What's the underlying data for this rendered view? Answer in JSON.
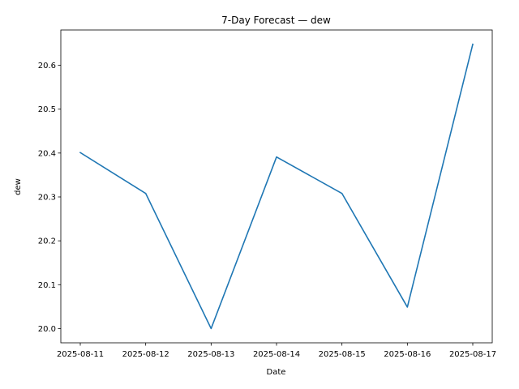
{
  "chart_data": {
    "type": "line",
    "title": "7-Day Forecast — dew",
    "xlabel": "Date",
    "ylabel": "dew",
    "x": [
      "2025-08-11",
      "2025-08-12",
      "2025-08-13",
      "2025-08-14",
      "2025-08-15",
      "2025-08-16",
      "2025-08-17"
    ],
    "series": [
      {
        "values": [
          20.401,
          20.308,
          20.0,
          20.391,
          20.308,
          20.049,
          20.648
        ],
        "color": "#1f77b4"
      }
    ],
    "yticks": [
      20.0,
      20.1,
      20.2,
      20.3,
      20.4,
      20.5,
      20.6
    ],
    "ytick_labels": [
      "20.0",
      "20.1",
      "20.2",
      "20.3",
      "20.4",
      "20.5",
      "20.6"
    ],
    "ylim": [
      19.9676,
      20.6804
    ],
    "grid": false,
    "legend": "none"
  }
}
